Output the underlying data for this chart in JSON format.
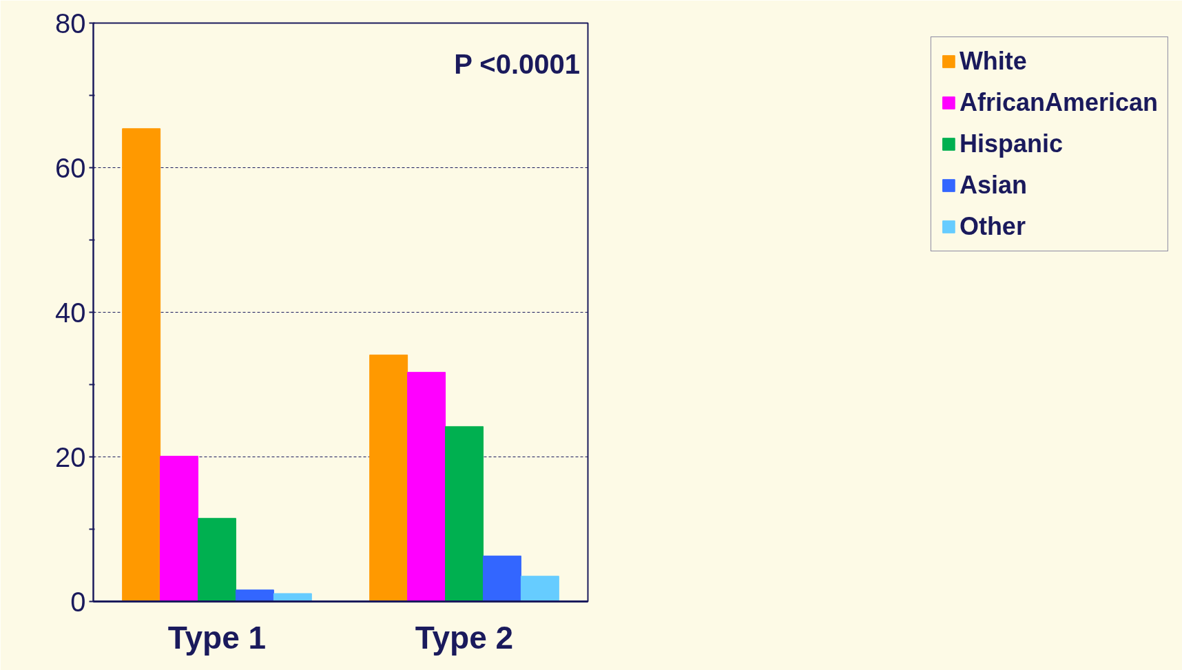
{
  "chart_data": {
    "type": "bar",
    "categories": [
      "Type 1",
      "Type 2"
    ],
    "series": [
      {
        "name": "White",
        "color": "#ff9900",
        "values": [
          65.4,
          34.1
        ]
      },
      {
        "name": "AfricanAmerican",
        "color": "#ff00ff",
        "values": [
          20.1,
          31.7
        ]
      },
      {
        "name": "Hispanic",
        "color": "#00b050",
        "values": [
          11.5,
          24.2
        ]
      },
      {
        "name": "Asian",
        "color": "#3366ff",
        "values": [
          1.6,
          6.3
        ]
      },
      {
        "name": "Other",
        "color": "#66ccff",
        "values": [
          1.1,
          3.5
        ]
      }
    ],
    "ylim": [
      0,
      80
    ],
    "yticks": [
      0,
      {
        "value": 10,
        "label": null
      },
      20,
      {
        "value": 30,
        "label": null
      },
      40,
      {
        "value": 50,
        "label": null
      },
      60,
      {
        "value": 70,
        "label": null
      },
      80
    ],
    "grid": "y",
    "legend": "right",
    "annotations": [
      "P <0.0001"
    ]
  }
}
